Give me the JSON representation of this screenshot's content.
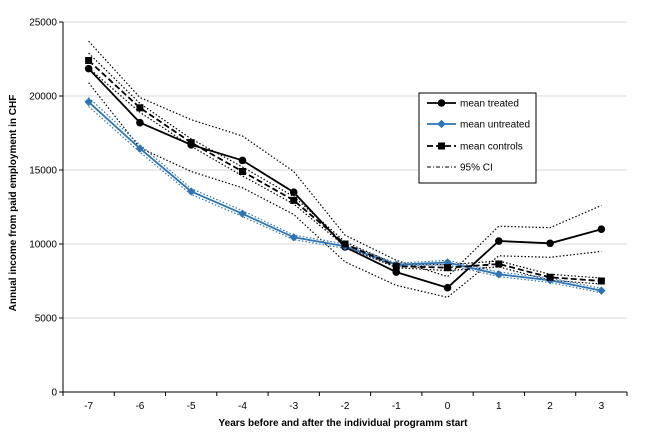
{
  "chart_data": {
    "type": "line",
    "xlabel": "Years before and after the individual programm start",
    "ylabel": "Annual income from paid employment in CHF",
    "x": [
      -7,
      -6,
      -5,
      -4,
      -3,
      -2,
      -1,
      0,
      1,
      2,
      3
    ],
    "ylim": [
      0,
      25000
    ],
    "yticks": [
      0,
      5000,
      10000,
      15000,
      20000,
      25000
    ],
    "grid": true,
    "legend": "right",
    "series": [
      {
        "name": "mean treated",
        "values": [
          21850,
          18200,
          16700,
          15650,
          13500,
          9800,
          8100,
          7050,
          10200,
          10050,
          11000
        ],
        "color": "#000000",
        "marker": "circle",
        "style": "solid"
      },
      {
        "name": "mean untreated",
        "values": [
          19600,
          16450,
          13550,
          12050,
          10450,
          9850,
          8600,
          8750,
          7950,
          7550,
          6850
        ],
        "color": "#2E75B6",
        "marker": "diamond",
        "style": "solid"
      },
      {
        "name": "mean controls",
        "values": [
          22400,
          19200,
          16850,
          14900,
          12950,
          10000,
          8500,
          8400,
          8650,
          7750,
          7500
        ],
        "color": "#000000",
        "marker": "square",
        "style": "dashed"
      },
      {
        "name": "95% CI",
        "color": "#000000",
        "style": "dotted",
        "bands": [
          {
            "of": "mean treated",
            "lower": [
              20900,
              16500,
              14900,
              13800,
              12000,
              8800,
              7200,
              6400,
              9200,
              9100,
              9500
            ],
            "upper": [
              23700,
              19900,
              18400,
              17300,
              14900,
              10600,
              8900,
              7800,
              11200,
              11100,
              12600
            ]
          },
          {
            "of": "mean untreated",
            "lower": [
              19300,
              16200,
              13350,
              11850,
              10300,
              9700,
              8500,
              8600,
              7800,
              7400,
              6700
            ],
            "upper": [
              19900,
              16700,
              13750,
              12250,
              10600,
              10000,
              8700,
              8900,
              8100,
              7700,
              7000
            ]
          },
          {
            "of": "mean controls",
            "lower": [
              21900,
              18900,
              16600,
              14600,
              12700,
              9850,
              8400,
              8200,
              8450,
              7550,
              7300
            ],
            "upper": [
              22900,
              19500,
              17100,
              15200,
              13200,
              10150,
              8600,
              8600,
              8850,
              7950,
              7700
            ]
          }
        ]
      }
    ]
  }
}
